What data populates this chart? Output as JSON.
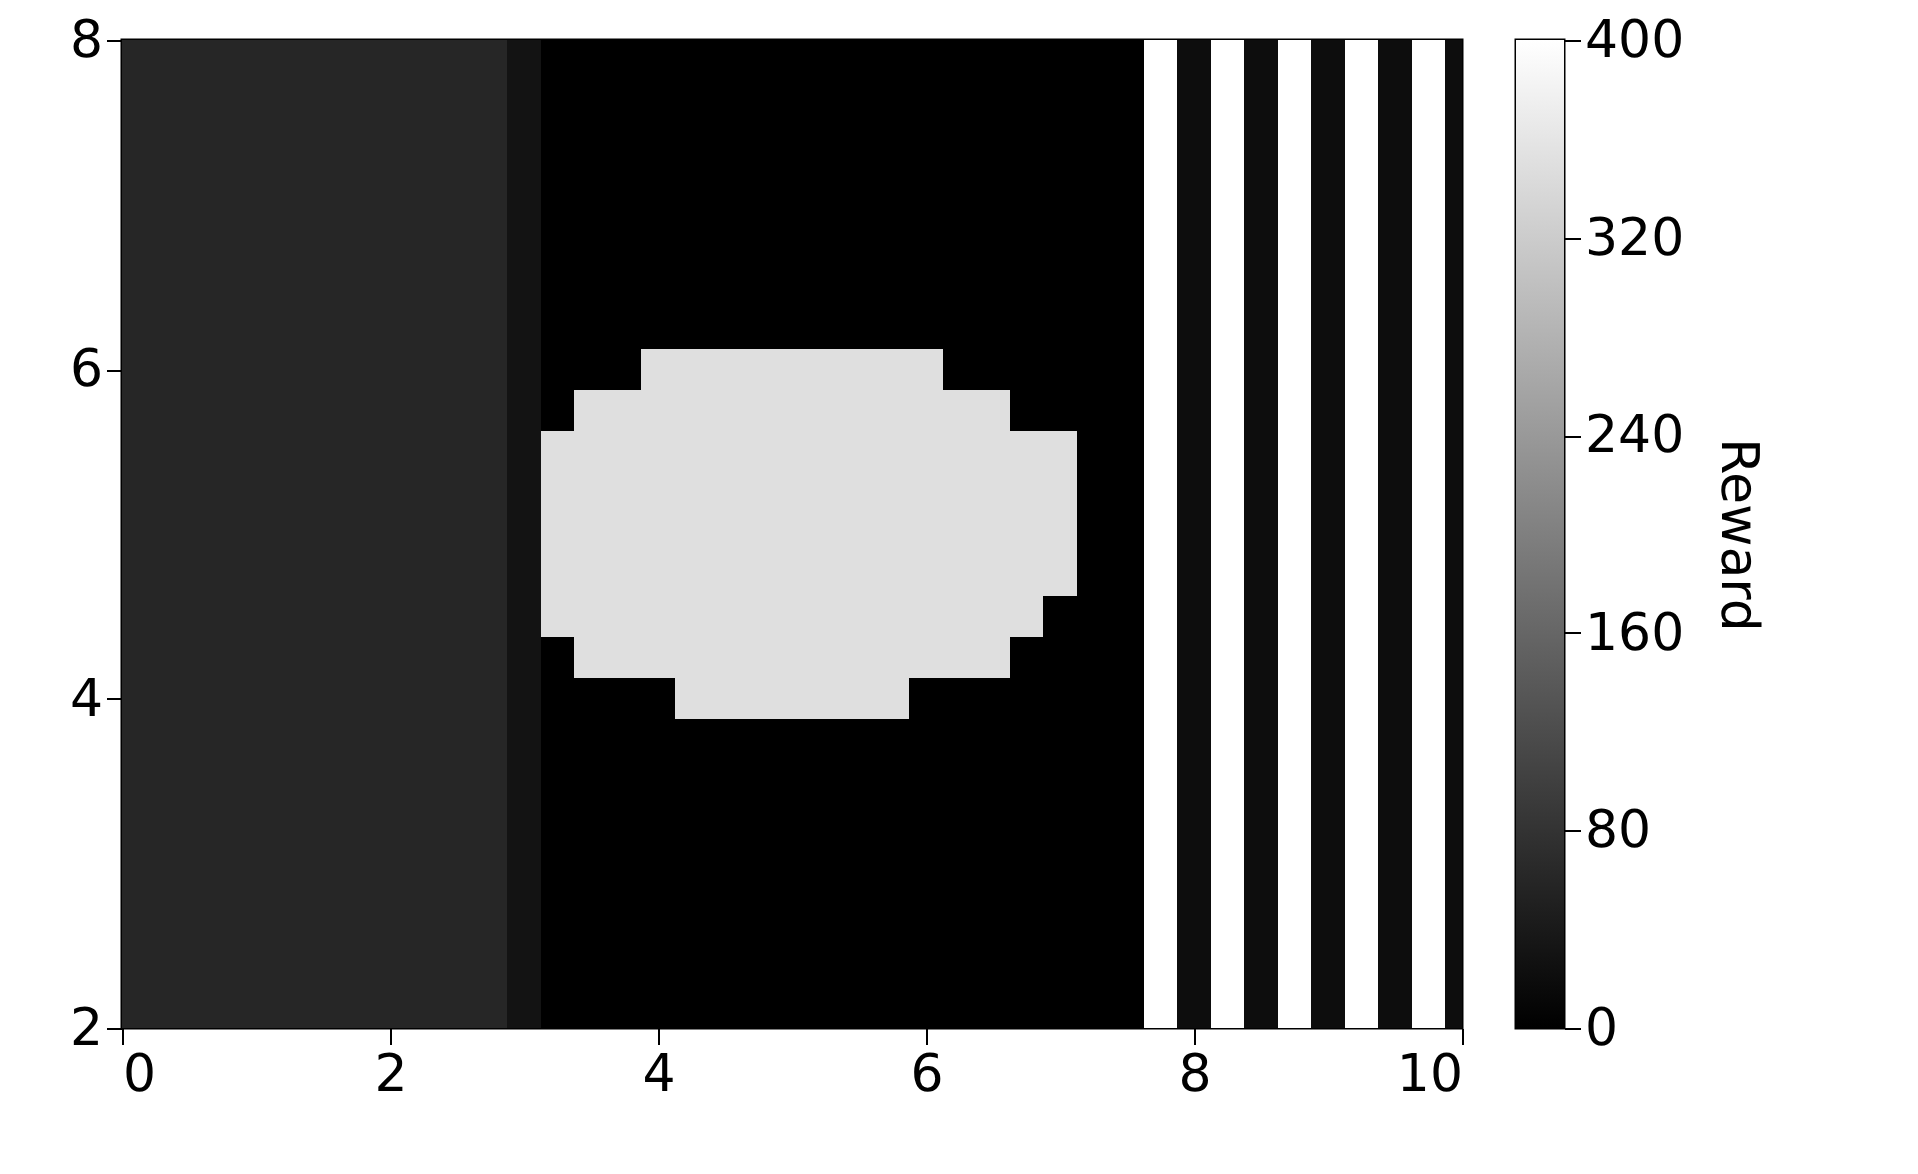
{
  "chart_data": {
    "type": "heatmap",
    "clabel": "Reward",
    "x": [
      0,
      0.25,
      0.5,
      0.75,
      1,
      1.25,
      1.5,
      1.75,
      2,
      2.25,
      2.5,
      2.75,
      3,
      3.25,
      3.5,
      3.75,
      4,
      4.25,
      4.5,
      4.75,
      5,
      5.25,
      5.5,
      5.75,
      6,
      6.25,
      6.5,
      6.75,
      7,
      7.25,
      7.5,
      7.75,
      8,
      8.25,
      8.5,
      8.75,
      9,
      9.25,
      9.5,
      9.75,
      10
    ],
    "cells": [
      [
        60,
        60,
        60,
        60,
        60,
        60,
        60,
        60,
        60,
        60,
        60,
        60,
        30,
        0,
        0,
        0,
        0,
        0,
        0,
        0,
        0,
        0,
        0,
        0,
        0,
        0,
        0,
        0,
        0,
        0,
        0,
        400,
        20,
        400,
        20,
        400,
        20,
        400,
        20,
        400,
        20
      ],
      [
        60,
        60,
        60,
        60,
        60,
        60,
        60,
        60,
        60,
        60,
        60,
        60,
        30,
        0,
        0,
        0,
        0,
        0,
        0,
        0,
        0,
        0,
        0,
        0,
        0,
        0,
        0,
        0,
        0,
        0,
        0,
        400,
        20,
        400,
        20,
        400,
        20,
        400,
        20,
        400,
        20
      ],
      [
        60,
        60,
        60,
        60,
        60,
        60,
        60,
        60,
        60,
        60,
        60,
        60,
        30,
        0,
        0,
        0,
        0,
        0,
        0,
        0,
        0,
        0,
        0,
        0,
        0,
        0,
        0,
        0,
        0,
        0,
        0,
        400,
        20,
        400,
        20,
        400,
        20,
        400,
        20,
        400,
        20
      ],
      [
        60,
        60,
        60,
        60,
        60,
        60,
        60,
        60,
        60,
        60,
        60,
        60,
        30,
        0,
        0,
        0,
        0,
        0,
        0,
        0,
        0,
        0,
        0,
        0,
        0,
        0,
        0,
        0,
        0,
        0,
        0,
        400,
        20,
        400,
        20,
        400,
        20,
        400,
        20,
        400,
        20
      ],
      [
        60,
        60,
        60,
        60,
        60,
        60,
        60,
        60,
        60,
        60,
        60,
        60,
        30,
        0,
        0,
        0,
        0,
        0,
        0,
        0,
        0,
        0,
        0,
        0,
        0,
        0,
        0,
        0,
        0,
        0,
        0,
        400,
        20,
        400,
        20,
        400,
        20,
        400,
        20,
        400,
        20
      ],
      [
        60,
        60,
        60,
        60,
        60,
        60,
        60,
        60,
        60,
        60,
        60,
        60,
        30,
        0,
        0,
        0,
        0,
        0,
        0,
        0,
        0,
        0,
        0,
        0,
        0,
        0,
        0,
        0,
        0,
        0,
        0,
        400,
        20,
        400,
        20,
        400,
        20,
        400,
        20,
        400,
        20
      ],
      [
        60,
        60,
        60,
        60,
        60,
        60,
        60,
        60,
        60,
        60,
        60,
        60,
        30,
        0,
        0,
        0,
        0,
        0,
        0,
        0,
        0,
        0,
        0,
        0,
        0,
        0,
        0,
        0,
        0,
        0,
        0,
        400,
        20,
        400,
        20,
        400,
        20,
        400,
        20,
        400,
        20
      ],
      [
        60,
        60,
        60,
        60,
        60,
        60,
        60,
        60,
        60,
        60,
        60,
        60,
        30,
        0,
        0,
        0,
        0,
        0,
        0,
        0,
        0,
        0,
        0,
        0,
        0,
        0,
        0,
        0,
        0,
        0,
        0,
        400,
        20,
        400,
        20,
        400,
        20,
        400,
        20,
        400,
        20
      ],
      [
        60,
        60,
        60,
        60,
        60,
        60,
        60,
        60,
        60,
        60,
        60,
        60,
        30,
        0,
        0,
        0,
        350,
        350,
        350,
        350,
        350,
        350,
        350,
        350,
        350,
        0,
        0,
        0,
        0,
        0,
        0,
        400,
        20,
        400,
        20,
        400,
        20,
        400,
        20,
        400,
        20
      ],
      [
        60,
        60,
        60,
        60,
        60,
        60,
        60,
        60,
        60,
        60,
        60,
        60,
        30,
        0,
        350,
        350,
        350,
        350,
        350,
        350,
        350,
        350,
        350,
        350,
        350,
        350,
        350,
        0,
        0,
        0,
        0,
        400,
        20,
        400,
        20,
        400,
        20,
        400,
        20,
        400,
        20
      ],
      [
        60,
        60,
        60,
        60,
        60,
        60,
        60,
        60,
        60,
        60,
        60,
        60,
        30,
        350,
        350,
        350,
        350,
        350,
        350,
        350,
        350,
        350,
        350,
        350,
        350,
        350,
        350,
        350,
        350,
        0,
        0,
        400,
        20,
        400,
        20,
        400,
        20,
        400,
        20,
        400,
        20
      ],
      [
        60,
        60,
        60,
        60,
        60,
        60,
        60,
        60,
        60,
        60,
        60,
        60,
        30,
        350,
        350,
        350,
        350,
        350,
        350,
        350,
        350,
        350,
        350,
        350,
        350,
        350,
        350,
        350,
        350,
        0,
        0,
        400,
        20,
        400,
        20,
        400,
        20,
        400,
        20,
        400,
        20
      ],
      [
        60,
        60,
        60,
        60,
        60,
        60,
        60,
        60,
        60,
        60,
        60,
        60,
        30,
        350,
        350,
        350,
        350,
        350,
        350,
        350,
        350,
        350,
        350,
        350,
        350,
        350,
        350,
        350,
        350,
        0,
        0,
        400,
        20,
        400,
        20,
        400,
        20,
        400,
        20,
        400,
        20
      ],
      [
        60,
        60,
        60,
        60,
        60,
        60,
        60,
        60,
        60,
        60,
        60,
        60,
        30,
        350,
        350,
        350,
        350,
        350,
        350,
        350,
        350,
        350,
        350,
        350,
        350,
        350,
        350,
        350,
        350,
        0,
        0,
        400,
        20,
        400,
        20,
        400,
        20,
        400,
        20,
        400,
        20
      ],
      [
        60,
        60,
        60,
        60,
        60,
        60,
        60,
        60,
        60,
        60,
        60,
        60,
        30,
        350,
        350,
        350,
        350,
        350,
        350,
        350,
        350,
        350,
        350,
        350,
        350,
        350,
        350,
        350,
        0,
        0,
        0,
        400,
        20,
        400,
        20,
        400,
        20,
        400,
        20,
        400,
        20
      ],
      [
        60,
        60,
        60,
        60,
        60,
        60,
        60,
        60,
        60,
        60,
        60,
        60,
        30,
        0,
        350,
        350,
        350,
        350,
        350,
        350,
        350,
        350,
        350,
        350,
        350,
        350,
        350,
        0,
        0,
        0,
        0,
        400,
        20,
        400,
        20,
        400,
        20,
        400,
        20,
        400,
        20
      ],
      [
        60,
        60,
        60,
        60,
        60,
        60,
        60,
        60,
        60,
        60,
        60,
        60,
        30,
        0,
        0,
        0,
        0,
        350,
        350,
        350,
        350,
        350,
        350,
        350,
        0,
        0,
        0,
        0,
        0,
        0,
        0,
        400,
        20,
        400,
        20,
        400,
        20,
        400,
        20,
        400,
        20
      ],
      [
        60,
        60,
        60,
        60,
        60,
        60,
        60,
        60,
        60,
        60,
        60,
        60,
        30,
        0,
        0,
        0,
        0,
        0,
        0,
        0,
        0,
        0,
        0,
        0,
        0,
        0,
        0,
        0,
        0,
        0,
        0,
        400,
        20,
        400,
        20,
        400,
        20,
        400,
        20,
        400,
        20
      ],
      [
        60,
        60,
        60,
        60,
        60,
        60,
        60,
        60,
        60,
        60,
        60,
        60,
        30,
        0,
        0,
        0,
        0,
        0,
        0,
        0,
        0,
        0,
        0,
        0,
        0,
        0,
        0,
        0,
        0,
        0,
        0,
        400,
        20,
        400,
        20,
        400,
        20,
        400,
        20,
        400,
        20
      ],
      [
        60,
        60,
        60,
        60,
        60,
        60,
        60,
        60,
        60,
        60,
        60,
        60,
        30,
        0,
        0,
        0,
        0,
        0,
        0,
        0,
        0,
        0,
        0,
        0,
        0,
        0,
        0,
        0,
        0,
        0,
        0,
        400,
        20,
        400,
        20,
        400,
        20,
        400,
        20,
        400,
        20
      ],
      [
        60,
        60,
        60,
        60,
        60,
        60,
        60,
        60,
        60,
        60,
        60,
        60,
        30,
        0,
        0,
        0,
        0,
        0,
        0,
        0,
        0,
        0,
        0,
        0,
        0,
        0,
        0,
        0,
        0,
        0,
        0,
        400,
        20,
        400,
        20,
        400,
        20,
        400,
        20,
        400,
        20
      ],
      [
        60,
        60,
        60,
        60,
        60,
        60,
        60,
        60,
        60,
        60,
        60,
        60,
        30,
        0,
        0,
        0,
        0,
        0,
        0,
        0,
        0,
        0,
        0,
        0,
        0,
        0,
        0,
        0,
        0,
        0,
        0,
        400,
        20,
        400,
        20,
        400,
        20,
        400,
        20,
        400,
        20
      ],
      [
        60,
        60,
        60,
        60,
        60,
        60,
        60,
        60,
        60,
        60,
        60,
        60,
        30,
        0,
        0,
        0,
        0,
        0,
        0,
        0,
        0,
        0,
        0,
        0,
        0,
        0,
        0,
        0,
        0,
        0,
        0,
        400,
        20,
        400,
        20,
        400,
        20,
        400,
        20,
        400,
        20
      ],
      [
        60,
        60,
        60,
        60,
        60,
        60,
        60,
        60,
        60,
        60,
        60,
        60,
        30,
        0,
        0,
        0,
        0,
        0,
        0,
        0,
        0,
        0,
        0,
        0,
        0,
        0,
        0,
        0,
        0,
        0,
        0,
        400,
        20,
        400,
        20,
        400,
        20,
        400,
        20,
        400,
        20
      ],
      [
        60,
        60,
        60,
        60,
        60,
        60,
        60,
        60,
        60,
        60,
        60,
        60,
        30,
        0,
        0,
        0,
        0,
        0,
        0,
        0,
        0,
        0,
        0,
        0,
        0,
        0,
        0,
        0,
        0,
        0,
        0,
        400,
        20,
        400,
        20,
        400,
        20,
        400,
        20,
        400,
        20
      ]
    ],
    "xlim": [
      0,
      10
    ],
    "xticks": [
      0,
      2,
      4,
      6,
      8,
      10
    ],
    "ylim": [
      2,
      8
    ],
    "yticks": [
      2,
      4,
      6,
      8
    ],
    "clim": [
      0,
      400
    ],
    "cticks": [
      0,
      80,
      160,
      240,
      320,
      400
    ]
  }
}
